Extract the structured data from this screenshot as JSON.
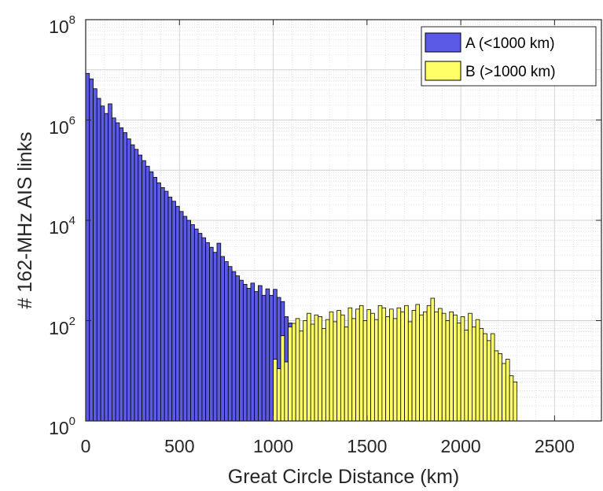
{
  "chart_data": {
    "type": "bar",
    "xlabel": "Great Circle Distance (km)",
    "ylabel": "# 162-MHz AIS links",
    "xlim": [
      0,
      2750
    ],
    "ylim_log10": [
      0,
      8
    ],
    "yscale": "log",
    "grid": true,
    "minor_grid": true,
    "legend_position": "top-right",
    "bin_width_km": 20,
    "x_ticks": [
      "0",
      "500",
      "1000",
      "1500",
      "2000",
      "2500"
    ],
    "y_tick_base": "10",
    "y_tick_exponents": [
      "0",
      "2",
      "4",
      "6",
      "8"
    ],
    "series": [
      {
        "name": "A (<1000 km)",
        "color": "#5a5ae6",
        "x_start_km": 0,
        "counts": [
          8500000,
          6600000,
          4200000,
          2700000,
          1900000,
          1350000,
          2100000,
          1100000,
          880000,
          700000,
          560000,
          420000,
          320000,
          260000,
          200000,
          155000,
          120000,
          93000,
          72000,
          56000,
          45000,
          38000,
          29000,
          24000,
          19000,
          15000,
          12000,
          10000,
          8200,
          6700,
          5500,
          4500,
          3600,
          2900,
          2300,
          3500,
          1900,
          1500,
          1200,
          950,
          780,
          640,
          530,
          440,
          560,
          380,
          500,
          320,
          430,
          320,
          420,
          290,
          240,
          120,
          90,
          28,
          3.8,
          8,
          11,
          15,
          14
        ]
      },
      {
        "name": "B (>1000 km)",
        "color": "#ffff66",
        "x_start_km": 1000,
        "counts": [
          17,
          11,
          50,
          15,
          75,
          88,
          110,
          62,
          100,
          140,
          85,
          130,
          120,
          70,
          105,
          150,
          95,
          160,
          130,
          75,
          180,
          110,
          170,
          200,
          100,
          165,
          140,
          105,
          200,
          180,
          120,
          170,
          110,
          180,
          150,
          200,
          95,
          160,
          210,
          130,
          150,
          200,
          280,
          150,
          175,
          140,
          100,
          150,
          130,
          90,
          120,
          65,
          140,
          75,
          105,
          70,
          55,
          40,
          55,
          25,
          22,
          14,
          17,
          8,
          6
        ]
      }
    ]
  }
}
